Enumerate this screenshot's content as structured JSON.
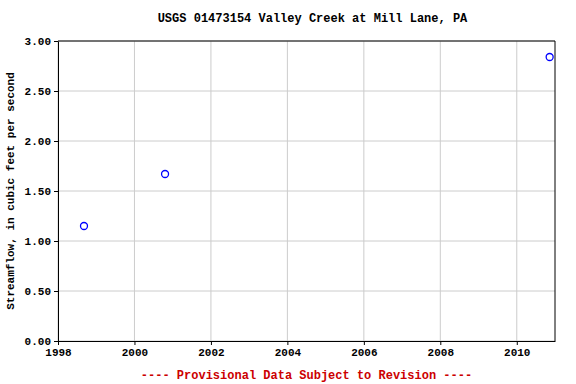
{
  "chart_data": {
    "type": "scatter",
    "title": "USGS 01473154 Valley Creek at Mill Lane, PA",
    "y_label": "Streamflow, in cubic feet per second",
    "annotation": "---- Provisional Data Subject to Revision ----",
    "x": [
      1998.68,
      2000.8,
      2010.86
    ],
    "values": [
      1.15,
      1.67,
      2.84
    ],
    "color": "#0000ff",
    "marker": "open-circle",
    "xlim": [
      1998,
      2011
    ],
    "xticks": [
      1998,
      2000,
      2002,
      2004,
      2006,
      2008,
      2010
    ],
    "ylim": [
      0,
      3
    ],
    "yticks": [
      {
        "value": 0,
        "label": "0.00"
      },
      {
        "value": 0.5,
        "label": "0.50"
      },
      {
        "value": 1,
        "label": "1.00"
      },
      {
        "value": 1.5,
        "label": "1.50"
      },
      {
        "value": 2,
        "label": "2.00"
      },
      {
        "value": 2.5,
        "label": "2.50"
      },
      {
        "value": 3,
        "label": "3.00"
      }
    ],
    "grid": true
  }
}
